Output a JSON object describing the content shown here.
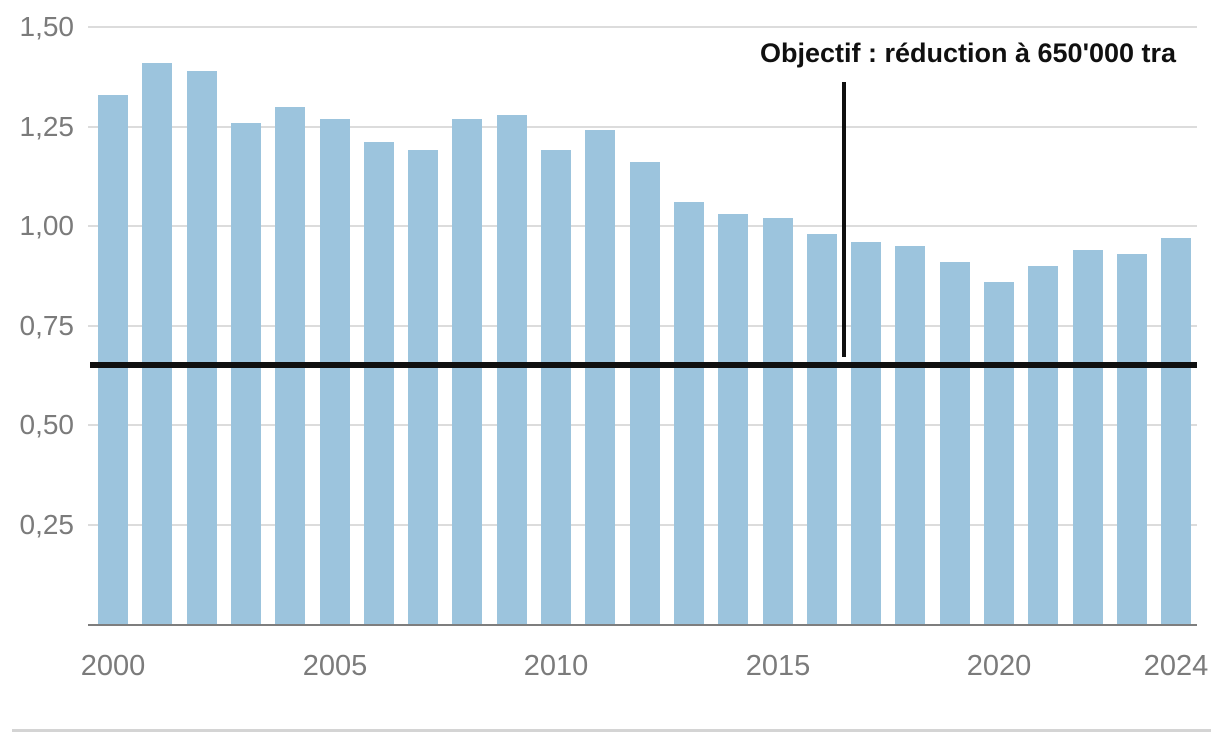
{
  "annotation": {
    "text": "Objectif : réduction à 650'000 tra",
    "between_years": [
      2016,
      2017
    ]
  },
  "chart_data": {
    "type": "bar",
    "title": "",
    "xlabel": "",
    "ylabel": "",
    "ylim": [
      0,
      1.5
    ],
    "grid": true,
    "legend": "none",
    "categories": [
      2000,
      2001,
      2002,
      2003,
      2004,
      2005,
      2006,
      2007,
      2008,
      2009,
      2010,
      2011,
      2012,
      2013,
      2014,
      2015,
      2016,
      2017,
      2018,
      2019,
      2020,
      2021,
      2022,
      2023,
      2024
    ],
    "values": [
      1.33,
      1.41,
      1.39,
      1.26,
      1.3,
      1.27,
      1.21,
      1.19,
      1.27,
      1.28,
      1.19,
      1.24,
      1.16,
      1.06,
      1.03,
      1.02,
      0.98,
      0.96,
      0.95,
      0.91,
      0.86,
      0.9,
      0.94,
      0.93,
      0.97
    ],
    "y_ticks": [
      {
        "value": 1.5,
        "label": "1,50"
      },
      {
        "value": 1.25,
        "label": "1,25"
      },
      {
        "value": 1.0,
        "label": "1,00"
      },
      {
        "value": 0.75,
        "label": "0,75"
      },
      {
        "value": 0.5,
        "label": "0,50"
      },
      {
        "value": 0.25,
        "label": "0,25"
      }
    ],
    "x_ticks": [
      {
        "year": 2000,
        "label": "2000"
      },
      {
        "year": 2005,
        "label": "2005"
      },
      {
        "year": 2010,
        "label": "2010"
      },
      {
        "year": 2015,
        "label": "2015"
      },
      {
        "year": 2020,
        "label": "2020"
      },
      {
        "year": 2024,
        "label": "2024"
      }
    ],
    "reference_line": {
      "value": 0.65,
      "label": "Objectif : réduction à 650'000 tra",
      "color": "#101010"
    },
    "colors": {
      "bar": "#9cc4dd",
      "gridline": "#dcdcdc",
      "axis": "#7e7e7e",
      "tick_text": "#7b7b7b",
      "reference_line": "#101010",
      "divider": "#d4d4d4"
    }
  }
}
